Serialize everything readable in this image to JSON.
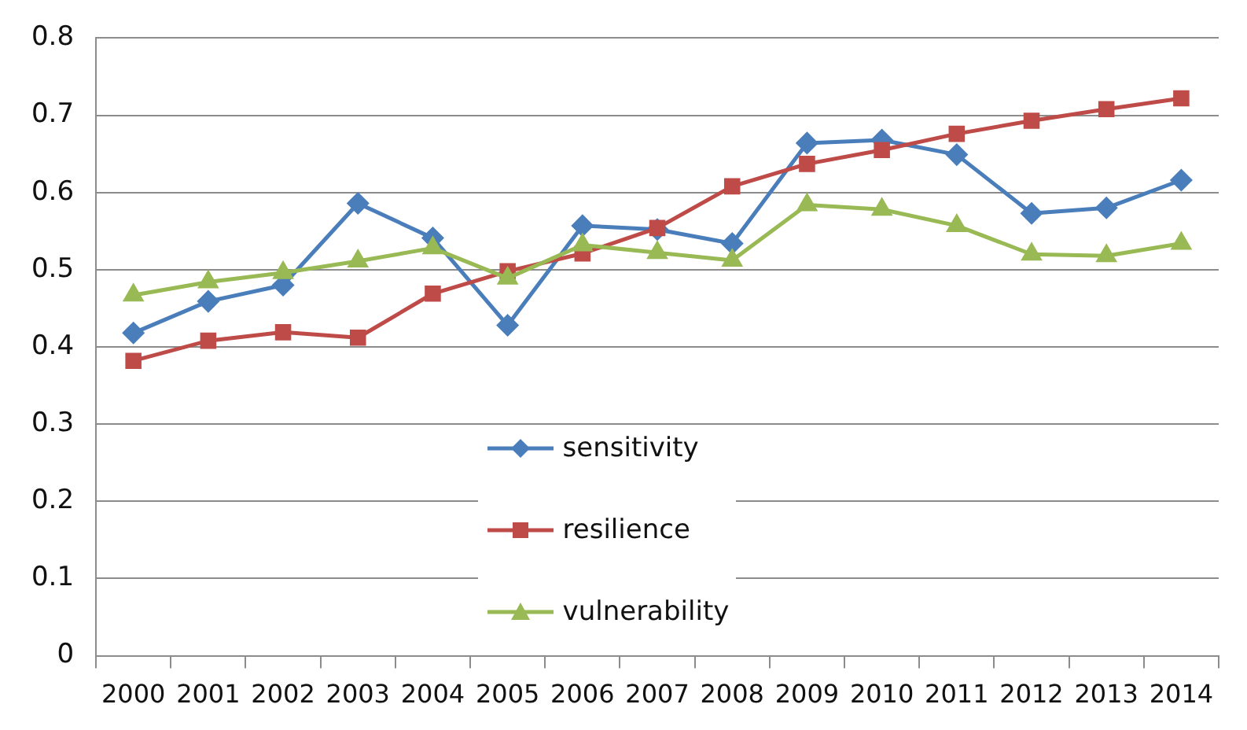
{
  "chart_data": {
    "type": "line",
    "categories": [
      "2000",
      "2001",
      "2002",
      "2003",
      "2004",
      "2005",
      "2006",
      "2007",
      "2008",
      "2009",
      "2010",
      "2011",
      "2012",
      "2013",
      "2014"
    ],
    "series": [
      {
        "name": "sensitivity",
        "color": "#4a7ebb",
        "marker": "diamond",
        "values": [
          0.418,
          0.459,
          0.48,
          0.586,
          0.541,
          0.428,
          0.557,
          0.552,
          0.534,
          0.664,
          0.668,
          0.649,
          0.573,
          0.58,
          0.616
        ]
      },
      {
        "name": "resilience",
        "color": "#be4b48",
        "marker": "square",
        "values": [
          0.382,
          0.408,
          0.419,
          0.412,
          0.469,
          0.498,
          0.521,
          0.554,
          0.608,
          0.637,
          0.655,
          0.676,
          0.693,
          0.708,
          0.722
        ]
      },
      {
        "name": "vulnerability",
        "color": "#98b954",
        "marker": "triangle",
        "values": [
          0.467,
          0.484,
          0.496,
          0.511,
          0.528,
          0.489,
          0.532,
          0.522,
          0.512,
          0.584,
          0.578,
          0.557,
          0.52,
          0.518,
          0.534
        ]
      }
    ],
    "ylim": [
      0,
      0.8
    ],
    "yticks": [
      0,
      0.1,
      0.2,
      0.3,
      0.4,
      0.5,
      0.6,
      0.7,
      0.8
    ],
    "grid": "y",
    "legend": "bottom",
    "line_style": "solid"
  }
}
